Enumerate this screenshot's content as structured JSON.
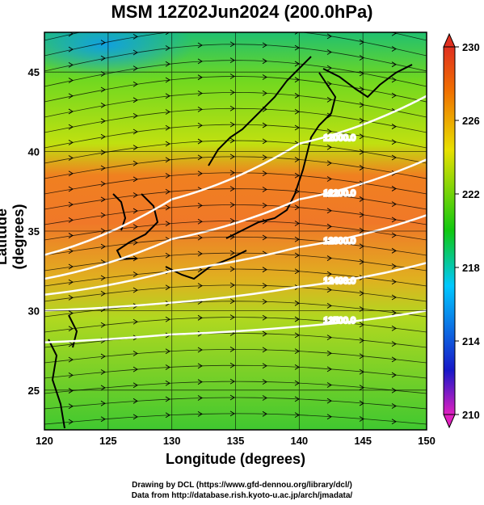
{
  "title": "MSM 12Z02Jun2024 (200.0hPa)",
  "xlabel": "Longitude (degrees)",
  "ylabel": "Latitude  (degrees)",
  "credits": [
    "Drawing by DCL (https://www.gfd-dennou.org/library/dcl/)",
    "Data from http://database.rish.kyoto-u.ac.jp/arch/jmadata/"
  ],
  "chart_data": {
    "type": "heatmap",
    "field": "temperature with wind streamlines and geopotential height contours",
    "xlim": [
      120,
      150
    ],
    "ylim": [
      22.5,
      47.5
    ],
    "xticks": [
      120,
      125,
      130,
      135,
      140,
      145,
      150
    ],
    "yticks": [
      25,
      30,
      35,
      40,
      45
    ],
    "colorbar": {
      "range": [
        210,
        230
      ],
      "tick_labels": [
        "210",
        "214",
        "218",
        "222",
        "226",
        "230"
      ],
      "colors": [
        "#e020c0",
        "#1818c8",
        "#00c8ff",
        "#10c810",
        "#e8e000",
        "#f07000",
        "#e03020"
      ]
    },
    "contour_labels": [
      "12000.0",
      "12000.0",
      "12200.0",
      "12300.0",
      "12400.0",
      "12500.0",
      "12200.0"
    ],
    "contours_lat_at_lon": [
      {
        "label": "12000.0",
        "points": [
          [
            120,
            33.5
          ],
          [
            130,
            37.0
          ],
          [
            140,
            40.5
          ],
          [
            150,
            43.5
          ]
        ]
      },
      {
        "label": "12200.0",
        "points": [
          [
            120,
            32.0
          ],
          [
            130,
            34.5
          ],
          [
            140,
            37.0
          ],
          [
            150,
            39.5
          ]
        ]
      },
      {
        "label": "12300.0",
        "points": [
          [
            120,
            31.0
          ],
          [
            130,
            32.5
          ],
          [
            140,
            34.0
          ],
          [
            150,
            36.0
          ]
        ]
      },
      {
        "label": "12400.0",
        "points": [
          [
            120,
            30.0
          ],
          [
            130,
            30.5
          ],
          [
            140,
            31.5
          ],
          [
            150,
            33.0
          ]
        ]
      },
      {
        "label": "12500.0",
        "points": [
          [
            120,
            28.0
          ],
          [
            130,
            28.5
          ],
          [
            140,
            29.0
          ],
          [
            150,
            30.0
          ]
        ]
      }
    ]
  }
}
